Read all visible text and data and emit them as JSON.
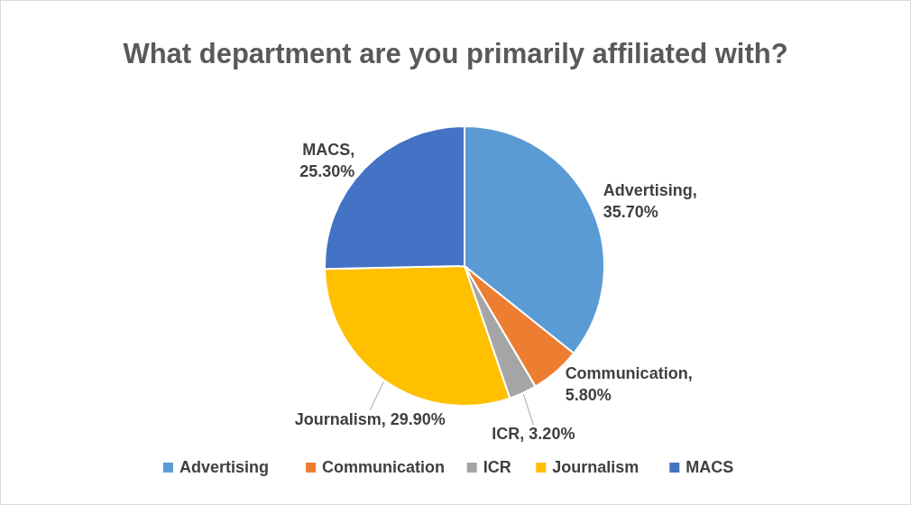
{
  "chart_data": {
    "type": "pie",
    "title": "What department are you primarily affiliated with?",
    "categories": [
      "Advertising",
      "Communication",
      "ICR",
      "Journalism",
      "MACS"
    ],
    "values": [
      35.7,
      5.8,
      3.2,
      29.9,
      25.3
    ],
    "value_labels": [
      "Advertising, 35.70%",
      "Communication, 5.80%",
      "ICR, 3.20%",
      "Journalism, 29.90%",
      "MACS, 25.30%"
    ],
    "colors": [
      "#5b9bd5",
      "#ed7d31",
      "#a5a5a5",
      "#ffc000",
      "#4472c4"
    ],
    "legend": "bottom"
  }
}
